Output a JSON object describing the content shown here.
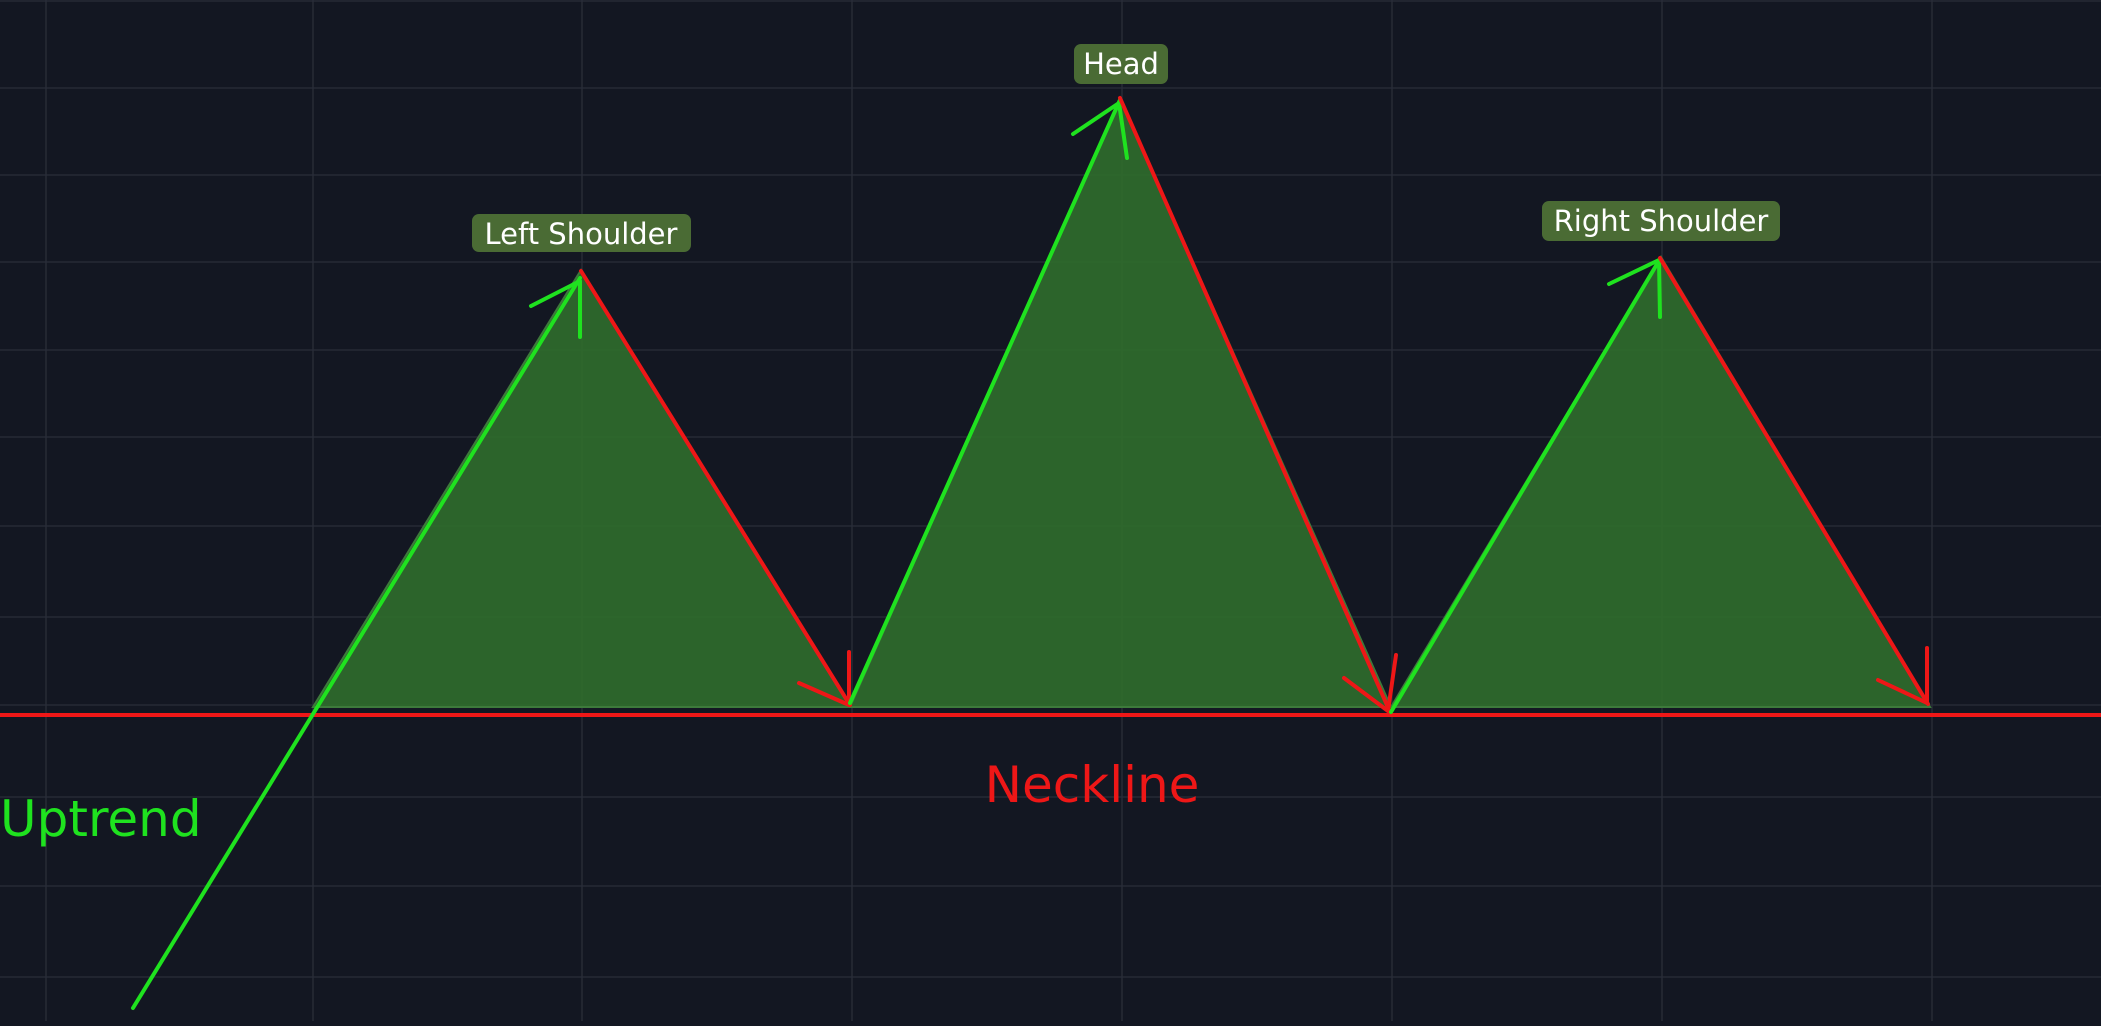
{
  "labels": {
    "left_shoulder": "Left Shoulder",
    "head": "Head",
    "right_shoulder": "Right Shoulder",
    "neckline": "Neckline",
    "uptrend": "Uptrend"
  },
  "colors": {
    "background": "#131722",
    "grid": "#2a2e39",
    "up_move": "#1fe21f",
    "down_move": "#ee1717",
    "peak_fill": "#2f6b2d",
    "label_box": "#4a6b34",
    "label_text": "#ffffff"
  }
}
